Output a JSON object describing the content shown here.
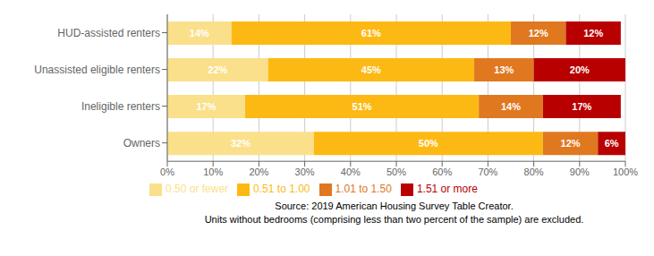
{
  "chart_data": {
    "type": "bar",
    "orientation": "horizontal",
    "stacked": true,
    "data_labels": true,
    "grid": true,
    "legend": "bottom",
    "categories": [
      "HUD-assisted renters",
      "Unassisted eligible renters",
      "Ineligible renters",
      "Owners"
    ],
    "series": [
      {
        "name": "0.50 or fewer",
        "color": "#FAE08A",
        "values": [
          14,
          22,
          17,
          32
        ],
        "value_labels": [
          "14%",
          "22%",
          "17%",
          "32%"
        ]
      },
      {
        "name": "0.51 to 1.00",
        "color": "#FDB913",
        "values": [
          61,
          45,
          51,
          50
        ],
        "value_labels": [
          "61%",
          "45%",
          "51%",
          "50%"
        ]
      },
      {
        "name": "1.01 to 1.50",
        "color": "#E07820",
        "values": [
          12,
          13,
          14,
          12
        ],
        "value_labels": [
          "12%",
          "13%",
          "14%",
          "12%"
        ]
      },
      {
        "name": "1.51 or more",
        "color": "#B80000",
        "values": [
          12,
          20,
          17,
          6
        ],
        "value_labels": [
          "12%",
          "20%",
          "17%",
          "6%"
        ]
      }
    ],
    "xlim": [
      0,
      100
    ],
    "xticks": [
      {
        "value": 0,
        "label": "0%"
      },
      {
        "value": 10,
        "label": "10%"
      },
      {
        "value": 20,
        "label": "20%"
      },
      {
        "value": 30,
        "label": "30%"
      },
      {
        "value": 40,
        "label": "40%"
      },
      {
        "value": 50,
        "label": "50%"
      },
      {
        "value": 60,
        "label": "60%"
      },
      {
        "value": 70,
        "label": "70%"
      },
      {
        "value": 80,
        "label": "80%"
      },
      {
        "value": 90,
        "label": "90%"
      },
      {
        "value": 100,
        "label": "100%"
      }
    ],
    "annotations": [
      "Source: 2019 American Housing Survey Table Creator.",
      "Units without bedrooms (comprising less than two percent of the sample) are excluded."
    ]
  }
}
